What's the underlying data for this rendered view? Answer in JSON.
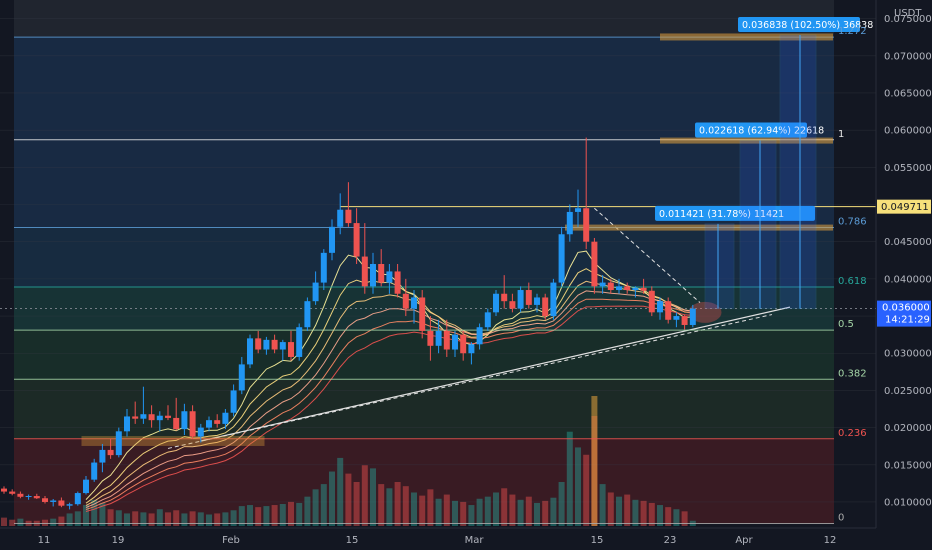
{
  "currency": "USDT",
  "chart_data": {
    "type": "candlestick",
    "quote_currency": "USDT",
    "y_axis": {
      "range": [
        0.0065,
        0.0775
      ],
      "ticks": [
        "0.075000",
        "0.070000",
        "0.065000",
        "0.060000",
        "0.055000",
        "0.050000",
        "0.045000",
        "0.040000",
        "0.035000",
        "0.030000",
        "0.025000",
        "0.020000",
        "0.015000",
        "0.010000"
      ]
    },
    "x_axis": {
      "ticks": [
        "11",
        "19",
        "Feb",
        "15",
        "Mar",
        "15",
        "23",
        "Apr",
        "12"
      ]
    },
    "price_labels": {
      "last_price": "0.036000",
      "countdown": "14:21:29",
      "level_price": "0.049711"
    },
    "fib_levels": [
      {
        "label": "1.272",
        "price": 0.0725,
        "color": "#5b9bd5"
      },
      {
        "label": "1",
        "price": 0.0587,
        "color": "#e5e5e5"
      },
      {
        "label": "0.786",
        "price": 0.0469,
        "color": "#5b9bd5"
      },
      {
        "label": "0.618",
        "price": 0.0389,
        "color": "#26a69a"
      },
      {
        "label": "0.5",
        "price": 0.0331,
        "color": "#a5d6a7"
      },
      {
        "label": "0.382",
        "price": 0.0265,
        "color": "#a5d6a7"
      },
      {
        "label": "0.236",
        "price": 0.0185,
        "color": "#ef5350"
      },
      {
        "label": "0",
        "price": 0.0071,
        "color": "#aaaaaa"
      }
    ],
    "measurements": [
      {
        "label": "0.011421 (31.78%) 11421",
        "from": 0.036,
        "to": 0.0474
      },
      {
        "label": "0.022618 (62.94%) 22618",
        "from": 0.036,
        "to": 0.0586
      },
      {
        "label": "0.036838 (102.50%) 36838",
        "from": 0.036,
        "to": 0.0728
      }
    ],
    "candles": [
      [
        0.0118,
        0.0121,
        0.0111,
        0.0114
      ],
      [
        0.0114,
        0.0117,
        0.0109,
        0.0111
      ],
      [
        0.0111,
        0.0114,
        0.0105,
        0.0107
      ],
      [
        0.0107,
        0.011,
        0.0103,
        0.0108
      ],
      [
        0.0108,
        0.0111,
        0.0104,
        0.0105
      ],
      [
        0.0105,
        0.0108,
        0.0098,
        0.01
      ],
      [
        0.01,
        0.0104,
        0.0094,
        0.0102
      ],
      [
        0.0102,
        0.0106,
        0.0093,
        0.0095
      ],
      [
        0.0095,
        0.0099,
        0.009,
        0.0097
      ],
      [
        0.0097,
        0.0114,
        0.0095,
        0.0112
      ],
      [
        0.0112,
        0.0135,
        0.011,
        0.013
      ],
      [
        0.013,
        0.0158,
        0.0127,
        0.0153
      ],
      [
        0.0153,
        0.0178,
        0.014,
        0.017
      ],
      [
        0.017,
        0.0185,
        0.0158,
        0.0163
      ],
      [
        0.0163,
        0.02,
        0.016,
        0.0195
      ],
      [
        0.0195,
        0.0225,
        0.0188,
        0.0215
      ],
      [
        0.0215,
        0.0235,
        0.0205,
        0.0212
      ],
      [
        0.0212,
        0.0255,
        0.0205,
        0.0218
      ],
      [
        0.0218,
        0.023,
        0.02,
        0.021
      ],
      [
        0.021,
        0.0222,
        0.0195,
        0.0216
      ],
      [
        0.0216,
        0.023,
        0.021,
        0.0213
      ],
      [
        0.0213,
        0.024,
        0.0196,
        0.0198
      ],
      [
        0.0198,
        0.0232,
        0.019,
        0.0222
      ],
      [
        0.0222,
        0.023,
        0.0185,
        0.0188
      ],
      [
        0.0188,
        0.0205,
        0.018,
        0.02
      ],
      [
        0.02,
        0.0215,
        0.0195,
        0.021
      ],
      [
        0.021,
        0.0218,
        0.02,
        0.0205
      ],
      [
        0.0205,
        0.0225,
        0.0198,
        0.022
      ],
      [
        0.022,
        0.0258,
        0.0215,
        0.025
      ],
      [
        0.025,
        0.0295,
        0.0245,
        0.0285
      ],
      [
        0.0285,
        0.0325,
        0.028,
        0.032
      ],
      [
        0.032,
        0.033,
        0.03,
        0.0305
      ],
      [
        0.0305,
        0.0322,
        0.0298,
        0.0318
      ],
      [
        0.0318,
        0.0325,
        0.03,
        0.0305
      ],
      [
        0.0305,
        0.0318,
        0.029,
        0.0315
      ],
      [
        0.0315,
        0.033,
        0.029,
        0.0295
      ],
      [
        0.0295,
        0.034,
        0.029,
        0.0335
      ],
      [
        0.0335,
        0.0375,
        0.033,
        0.037
      ],
      [
        0.037,
        0.041,
        0.0365,
        0.0395
      ],
      [
        0.0395,
        0.044,
        0.0385,
        0.0435
      ],
      [
        0.0435,
        0.048,
        0.0425,
        0.047
      ],
      [
        0.047,
        0.0515,
        0.046,
        0.0493
      ],
      [
        0.0493,
        0.053,
        0.047,
        0.0475
      ],
      [
        0.0475,
        0.0495,
        0.042,
        0.043
      ],
      [
        0.043,
        0.0475,
        0.038,
        0.039
      ],
      [
        0.039,
        0.0435,
        0.038,
        0.042
      ],
      [
        0.042,
        0.044,
        0.039,
        0.0395
      ],
      [
        0.0395,
        0.042,
        0.038,
        0.041
      ],
      [
        0.041,
        0.042,
        0.0375,
        0.038
      ],
      [
        0.038,
        0.04,
        0.035,
        0.036
      ],
      [
        0.036,
        0.0385,
        0.034,
        0.0375
      ],
      [
        0.0375,
        0.0385,
        0.032,
        0.033
      ],
      [
        0.033,
        0.035,
        0.029,
        0.031
      ],
      [
        0.031,
        0.0345,
        0.03,
        0.033
      ],
      [
        0.033,
        0.0345,
        0.0295,
        0.0305
      ],
      [
        0.0305,
        0.033,
        0.0295,
        0.0325
      ],
      [
        0.0325,
        0.033,
        0.029,
        0.03
      ],
      [
        0.03,
        0.0315,
        0.0285,
        0.0312
      ],
      [
        0.0312,
        0.034,
        0.0305,
        0.0335
      ],
      [
        0.0335,
        0.036,
        0.033,
        0.0355
      ],
      [
        0.0355,
        0.0385,
        0.035,
        0.038
      ],
      [
        0.038,
        0.0405,
        0.036,
        0.037
      ],
      [
        0.037,
        0.038,
        0.0355,
        0.036
      ],
      [
        0.036,
        0.039,
        0.0355,
        0.0385
      ],
      [
        0.0385,
        0.0395,
        0.036,
        0.0365
      ],
      [
        0.0365,
        0.038,
        0.0355,
        0.0375
      ],
      [
        0.0375,
        0.038,
        0.0345,
        0.035
      ],
      [
        0.035,
        0.04,
        0.0345,
        0.0395
      ],
      [
        0.0395,
        0.047,
        0.039,
        0.046
      ],
      [
        0.046,
        0.05,
        0.045,
        0.049
      ],
      [
        0.049,
        0.052,
        0.047,
        0.0495
      ],
      [
        0.0495,
        0.059,
        0.044,
        0.045
      ],
      [
        0.045,
        0.0455,
        0.038,
        0.039
      ],
      [
        0.039,
        0.0405,
        0.038,
        0.0395
      ],
      [
        0.0395,
        0.04,
        0.038,
        0.0385
      ],
      [
        0.0385,
        0.04,
        0.038,
        0.039
      ],
      [
        0.039,
        0.0395,
        0.038,
        0.0385
      ],
      [
        0.0385,
        0.039,
        0.0375,
        0.0388
      ],
      [
        0.0388,
        0.04,
        0.038,
        0.0384
      ],
      [
        0.0384,
        0.039,
        0.035,
        0.0355
      ],
      [
        0.0355,
        0.0375,
        0.0345,
        0.037
      ],
      [
        0.037,
        0.0375,
        0.034,
        0.0345
      ],
      [
        0.0345,
        0.0355,
        0.0335,
        0.035
      ],
      [
        0.035,
        0.0352,
        0.0332,
        0.0338
      ],
      [
        0.0338,
        0.0365,
        0.0335,
        0.036
      ]
    ],
    "volumes": [
      0.8,
      0.6,
      0.7,
      0.5,
      0.5,
      0.6,
      0.7,
      0.9,
      1.2,
      1.4,
      2.0,
      2.5,
      2.2,
      1.6,
      1.5,
      1.2,
      1.4,
      1.3,
      1.2,
      1.6,
      1.3,
      1.5,
      1.2,
      1.4,
      1.3,
      1.1,
      1.2,
      1.3,
      1.5,
      1.9,
      2.0,
      1.8,
      1.9,
      2.0,
      2.1,
      2.3,
      2.2,
      2.8,
      3.5,
      4.0,
      5.2,
      6.5,
      5.0,
      4.2,
      5.8,
      5.5,
      4.0,
      3.6,
      4.2,
      3.8,
      3.2,
      2.9,
      3.5,
      2.6,
      3.0,
      2.4,
      2.3,
      2.0,
      2.6,
      2.8,
      3.2,
      3.6,
      3.0,
      2.5,
      2.8,
      2.2,
      2.4,
      2.7,
      4.2,
      9.0,
      7.5,
      6.8,
      10.5,
      4.0,
      3.2,
      2.8,
      3.0,
      2.5,
      2.4,
      2.2,
      2.0,
      1.8,
      1.6,
      1.4,
      0.5
    ],
    "volume_colors": [
      "down",
      "down",
      "up",
      "down",
      "down",
      "down",
      "up",
      "down",
      "up",
      "up",
      "up",
      "up",
      "up",
      "down",
      "up",
      "up",
      "down",
      "up",
      "down",
      "up",
      "down",
      "down",
      "up",
      "down",
      "up",
      "up",
      "down",
      "up",
      "up",
      "up",
      "up",
      "down",
      "up",
      "down",
      "up",
      "down",
      "up",
      "up",
      "up",
      "up",
      "up",
      "up",
      "down",
      "down",
      "down",
      "up",
      "down",
      "up",
      "down",
      "down",
      "up",
      "down",
      "down",
      "up",
      "down",
      "up",
      "down",
      "up",
      "up",
      "up",
      "up",
      "down",
      "down",
      "up",
      "down",
      "up",
      "down",
      "up",
      "up",
      "up",
      "up",
      "down",
      "down",
      "up",
      "down",
      "up",
      "down",
      "up",
      "down",
      "down",
      "up",
      "down",
      "up",
      "down",
      "up"
    ],
    "ema_ribbon": [
      {
        "offset": 0.0055,
        "color": "#fff59d"
      },
      {
        "offset": 0.0035,
        "color": "#ffe082"
      },
      {
        "offset": 0.0015,
        "color": "#ffcc80"
      },
      {
        "offset": -0.0005,
        "color": "#ffab91"
      },
      {
        "offset": -0.0025,
        "color": "#ff8a65"
      },
      {
        "offset": -0.0045,
        "color": "#ef5350"
      }
    ],
    "support_line": {
      "from": [
        0.0245,
        0.0185
      ],
      "to": [
        0.0365,
        0.036
      ]
    }
  }
}
